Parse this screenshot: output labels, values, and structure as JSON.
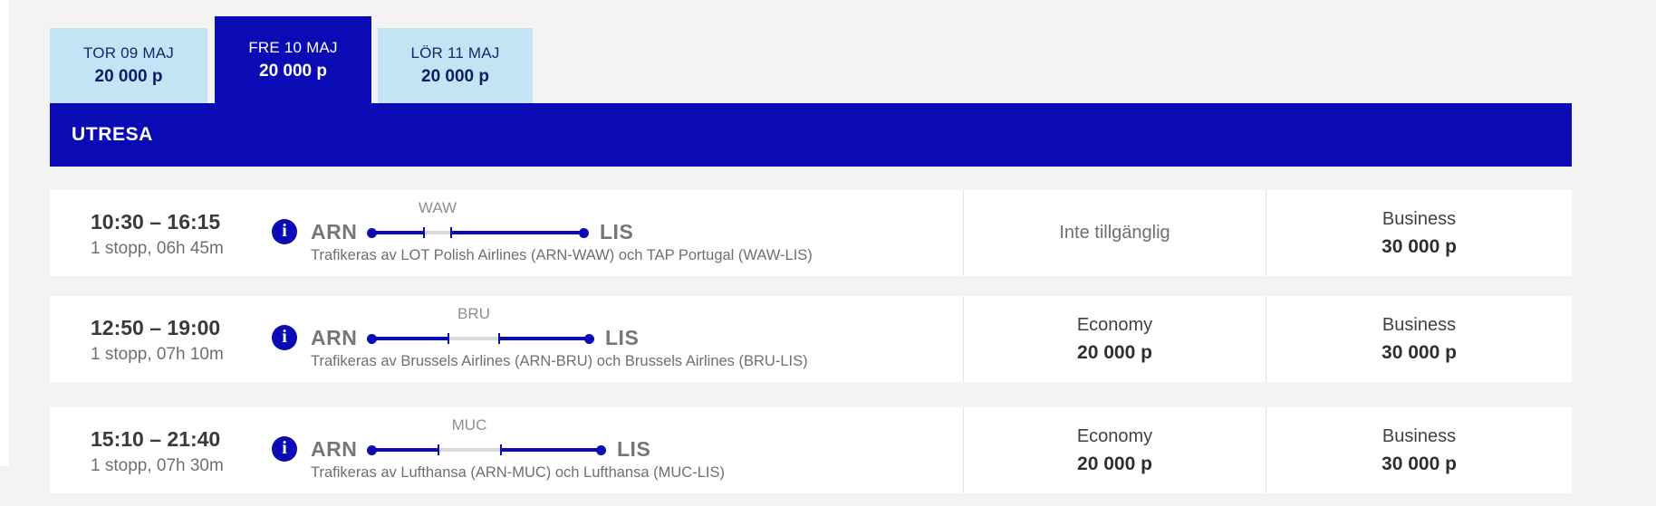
{
  "colors": {
    "brand_blue": "#0b0bb5",
    "light_blue": "#c3e4f4",
    "tab_text_navy": "#142871",
    "page_bg": "#f3f3f3",
    "stop_segment_gray": "#d9d9d9"
  },
  "tabs": [
    {
      "day": "TOR 09 MAJ",
      "points": "20 000 p",
      "selected": false
    },
    {
      "day": "FRE 10 MAJ",
      "points": "20 000 p",
      "selected": true
    },
    {
      "day": "LÖR 11 MAJ",
      "points": "20 000 p",
      "selected": false
    }
  ],
  "section_header": {
    "title": "UTRESA"
  },
  "icons": {
    "info_glyph": "i"
  },
  "flights": [
    {
      "departure_arrival": "10:30 – 16:15",
      "stops_duration": "1 stopp, 06h 45m",
      "origin": "ARN",
      "via": "WAW",
      "destination": "LIS",
      "operated_by": "Trafikeras av LOT Polish Airlines (ARN-WAW) och TAP Portugal (WAW-LIS)",
      "economy": {
        "status": "Inte tillgänglig"
      },
      "business": {
        "cabin": "Business",
        "points": "30 000 p"
      }
    },
    {
      "departure_arrival": "12:50 – 19:00",
      "stops_duration": "1 stopp, 07h 10m",
      "origin": "ARN",
      "via": "BRU",
      "destination": "LIS",
      "operated_by": "Trafikeras av Brussels Airlines (ARN-BRU) och Brussels Airlines (BRU-LIS)",
      "economy": {
        "cabin": "Economy",
        "points": "20 000 p"
      },
      "business": {
        "cabin": "Business",
        "points": "30 000 p"
      }
    },
    {
      "departure_arrival": "15:10 – 21:40",
      "stops_duration": "1 stopp, 07h 30m",
      "origin": "ARN",
      "via": "MUC",
      "destination": "LIS",
      "operated_by": "Trafikeras av Lufthansa (ARN-MUC) och Lufthansa (MUC-LIS)",
      "economy": {
        "cabin": "Economy",
        "points": "20 000 p"
      },
      "business": {
        "cabin": "Business",
        "points": "30 000 p"
      }
    }
  ]
}
